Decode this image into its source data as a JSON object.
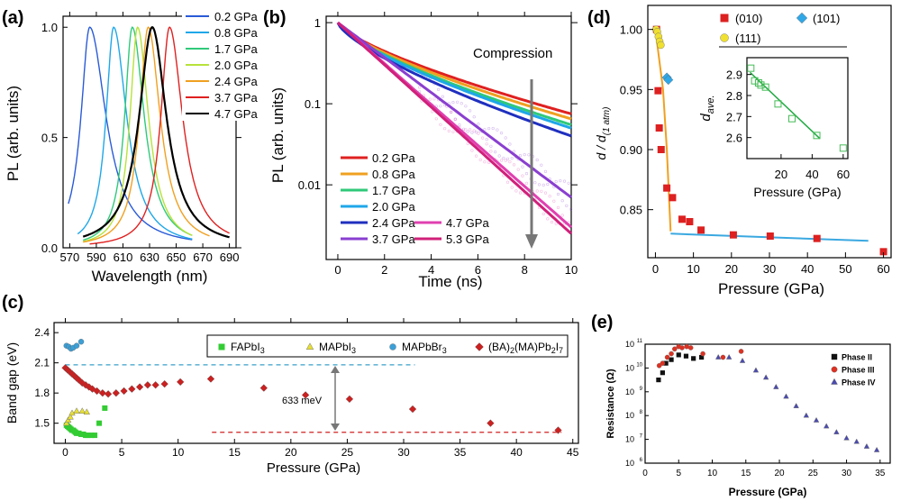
{
  "panels": {
    "a": {
      "label": "(a)"
    },
    "b": {
      "label": "(b)",
      "annotation": "Compression"
    },
    "c": {
      "label": "(c)",
      "annotation": "633 meV"
    },
    "d": {
      "label": "(d)",
      "inset_ylabel_main": "d",
      "inset_ylabel_sub": "ave.",
      "ylabel_main": "d / d",
      "ylabel_sub": "(1 atm)"
    },
    "e": {
      "label": "(e)"
    }
  },
  "chart_data": [
    {
      "id": "a",
      "type": "line",
      "title": "",
      "xlabel": "Wavelength (nm)",
      "ylabel": "PL (arb. units)",
      "xlim": [
        565,
        695
      ],
      "ylim": [
        0,
        1.05
      ],
      "xticks": [
        "570",
        "590",
        "610",
        "630",
        "650",
        "670",
        "690"
      ],
      "yticks": [
        "0.0",
        "0.5",
        "1.0"
      ],
      "series": [
        {
          "name": "0.2 GPa",
          "color": "#2a5bd7",
          "peak": 585,
          "left": 8,
          "right": 15,
          "start": 569,
          "end": 662
        },
        {
          "name": "0.8 GPa",
          "color": "#1ea7e8",
          "peak": 603,
          "left": 7,
          "right": 12,
          "start": 576,
          "end": 662
        },
        {
          "name": "1.7 GPa",
          "color": "#2fc97a",
          "peak": 617,
          "left": 7,
          "right": 11,
          "start": 580,
          "end": 662
        },
        {
          "name": "2.0 GPa",
          "color": "#b7e23a",
          "peak": 621,
          "left": 7,
          "right": 10,
          "start": 580,
          "end": 662
        },
        {
          "name": "2.4 GPa",
          "color": "#f0a020",
          "peak": 629,
          "left": 8,
          "right": 11,
          "start": 580,
          "end": 675
        },
        {
          "name": "3.7 GPa",
          "color": "#e02020",
          "peak": 645,
          "left": 8,
          "right": 12,
          "start": 585,
          "end": 690
        },
        {
          "name": "4.7 GPa",
          "color": "#000000",
          "peak": 632,
          "left": 12,
          "right": 13,
          "start": 580,
          "end": 690
        }
      ]
    },
    {
      "id": "b",
      "type": "line",
      "title": "",
      "xlabel": "Time (ns)",
      "ylabel": "PL (arb. units)",
      "xlim": [
        -0.5,
        10
      ],
      "ylim_log": [
        0.0012,
        1.2
      ],
      "xticks": [
        "0",
        "2",
        "4",
        "6",
        "8",
        "10"
      ],
      "yticks": [
        "0.01",
        "0.1",
        "1"
      ],
      "series": [
        {
          "name": "0.2 GPa",
          "color": "#e02020",
          "end_value": 0.075
        },
        {
          "name": "0.8 GPa",
          "color": "#f0a020",
          "end_value": 0.065
        },
        {
          "name": "1.7 GPa",
          "color": "#2fc97a",
          "end_value": 0.055
        },
        {
          "name": "2.0 GPa",
          "color": "#1ea7e8",
          "end_value": 0.05
        },
        {
          "name": "2.4 GPa",
          "color": "#1f2fbf",
          "end_value": 0.04
        },
        {
          "name": "3.7 GPa",
          "color": "#8a3fd0",
          "end_value": 0.007
        },
        {
          "name": "4.7 GPa",
          "color": "#e040b0",
          "end_value": 0.003
        },
        {
          "name": "5.3 GPa",
          "color": "#d0207a",
          "end_value": 0.0025
        }
      ]
    },
    {
      "id": "c",
      "type": "scatter",
      "title": "",
      "xlabel": "Pressure (GPa)",
      "ylabel": "Band gap (eV)",
      "xlim": [
        -1,
        45.5
      ],
      "ylim": [
        1.3,
        2.5
      ],
      "xticks": [
        "0",
        "5",
        "10",
        "15",
        "20",
        "25",
        "30",
        "35",
        "40",
        "45"
      ],
      "yticks": [
        "1.5",
        "1.8",
        "2.1",
        "2.4"
      ],
      "reference_lines": [
        {
          "y": 2.08,
          "color": "#3aa0c8"
        },
        {
          "y": 1.41,
          "color": "#d02020"
        }
      ],
      "series": [
        {
          "name": "FAPbI3",
          "display": "FAPbI",
          "sub": "3",
          "color": "#33cc33",
          "marker": "square",
          "points": [
            [
              0.1,
              1.48
            ],
            [
              0.2,
              1.47
            ],
            [
              0.3,
              1.46
            ],
            [
              0.4,
              1.45
            ],
            [
              0.5,
              1.44
            ],
            [
              0.6,
              1.43
            ],
            [
              0.7,
              1.43
            ],
            [
              0.8,
              1.42
            ],
            [
              0.9,
              1.41
            ],
            [
              1.0,
              1.4
            ],
            [
              1.2,
              1.4
            ],
            [
              1.4,
              1.39
            ],
            [
              1.6,
              1.39
            ],
            [
              1.8,
              1.38
            ],
            [
              2.0,
              1.38
            ],
            [
              2.3,
              1.38
            ],
            [
              2.6,
              1.38
            ],
            [
              3.0,
              1.5
            ],
            [
              3.5,
              1.65
            ]
          ]
        },
        {
          "name": "MAPbI3",
          "display": "MAPbI",
          "sub": "3",
          "color": "#e8e030",
          "marker": "triangle",
          "points": [
            [
              0.1,
              1.5
            ],
            [
              0.25,
              1.53
            ],
            [
              0.45,
              1.56
            ],
            [
              0.6,
              1.6
            ],
            [
              1.0,
              1.62
            ],
            [
              1.5,
              1.62
            ],
            [
              1.9,
              1.61
            ]
          ]
        },
        {
          "name": "MAPbBr3",
          "display": "MAPbBr",
          "sub": "3",
          "color": "#3aa0d8",
          "marker": "circle",
          "points": [
            [
              0.1,
              2.27
            ],
            [
              0.3,
              2.26
            ],
            [
              0.5,
              2.24
            ],
            [
              0.7,
              2.25
            ],
            [
              1.0,
              2.27
            ],
            [
              1.4,
              2.31
            ]
          ]
        },
        {
          "name": "(BA)2(MA)Pb2I7",
          "display": "(BA)",
          "color": "#cc2020",
          "marker": "diamond",
          "points": [
            [
              0.0,
              2.05
            ],
            [
              0.2,
              2.03
            ],
            [
              0.4,
              2.01
            ],
            [
              0.6,
              1.99
            ],
            [
              0.8,
              1.97
            ],
            [
              1.0,
              1.95
            ],
            [
              1.2,
              1.93
            ],
            [
              1.5,
              1.9
            ],
            [
              1.8,
              1.88
            ],
            [
              2.1,
              1.86
            ],
            [
              2.4,
              1.84
            ],
            [
              2.8,
              1.82
            ],
            [
              3.3,
              1.8
            ],
            [
              3.8,
              1.79
            ],
            [
              4.5,
              1.8
            ],
            [
              5.2,
              1.82
            ],
            [
              5.9,
              1.84
            ],
            [
              6.6,
              1.86
            ],
            [
              7.3,
              1.88
            ],
            [
              8.0,
              1.88
            ],
            [
              8.8,
              1.89
            ],
            [
              10.2,
              1.91
            ],
            [
              12.9,
              1.94
            ],
            [
              17.6,
              1.85
            ],
            [
              21.3,
              1.78
            ],
            [
              25.2,
              1.74
            ],
            [
              30.8,
              1.64
            ],
            [
              37.7,
              1.5
            ],
            [
              43.7,
              1.43
            ]
          ]
        }
      ]
    },
    {
      "id": "d",
      "type": "scatter",
      "title": "",
      "xlabel": "Pressure (GPa)",
      "ylabel": "d / d(1 atm)",
      "xlim": [
        -2,
        62
      ],
      "ylim": [
        0.81,
        1.02
      ],
      "xticks": [
        "0",
        "10",
        "20",
        "30",
        "40",
        "50",
        "60"
      ],
      "yticks": [
        "0.85",
        "0.90",
        "0.95",
        "1.00"
      ],
      "series": [
        {
          "name": "(010)",
          "color": "#dd2020",
          "marker": "square",
          "points": [
            [
              0.3,
              1.0
            ],
            [
              0.7,
              0.949
            ],
            [
              1.0,
              0.918
            ],
            [
              1.5,
              0.9
            ],
            [
              3.0,
              0.868
            ],
            [
              4.5,
              0.86
            ],
            [
              7.0,
              0.842
            ],
            [
              9.0,
              0.84
            ],
            [
              12.0,
              0.833
            ],
            [
              20.5,
              0.829
            ],
            [
              30.2,
              0.828
            ],
            [
              42.5,
              0.826
            ],
            [
              60.0,
              0.815
            ]
          ]
        },
        {
          "name": "(111)",
          "color": "#f0e030",
          "marker": "circle",
          "points": [
            [
              0.2,
              1.0
            ],
            [
              0.5,
              0.998
            ],
            [
              0.8,
              0.994
            ],
            [
              1.1,
              0.99
            ],
            [
              1.4,
              0.987
            ]
          ]
        },
        {
          "name": "(101)",
          "color": "#30a8e8",
          "marker": "diamond",
          "points": [
            [
              3.0,
              0.96
            ],
            [
              3.4,
              0.958
            ]
          ]
        }
      ],
      "fit_lines": [
        {
          "name": "low-pressure fit",
          "color": "#f0a020",
          "points": [
            [
              0,
              1.0
            ],
            [
              2,
              0.95
            ],
            [
              3,
              0.9
            ],
            [
              4,
              0.832
            ]
          ]
        },
        {
          "name": "high-pressure fit",
          "color": "#3aa8e0",
          "points": [
            [
              4,
              0.83
            ],
            [
              56,
              0.824
            ]
          ]
        }
      ],
      "inset": {
        "xlabel": "Pressure (GPa)",
        "ylabel": "d ave.",
        "xlim": [
          -2,
          63
        ],
        "ylim": [
          2.5,
          2.98
        ],
        "xticks": [
          "20",
          "40",
          "60"
        ],
        "yticks": [
          "2.6",
          "2.7",
          "2.8",
          "2.9"
        ],
        "color": "#22aa44",
        "points": [
          [
            0.5,
            2.93
          ],
          [
            3,
            2.87
          ],
          [
            5.5,
            2.86
          ],
          [
            7,
            2.85
          ],
          [
            10,
            2.84
          ],
          [
            18,
            2.76
          ],
          [
            27,
            2.69
          ],
          [
            43,
            2.61
          ],
          [
            60,
            2.55
          ]
        ],
        "fit": [
          [
            0,
            2.91
          ],
          [
            45,
            2.595
          ]
        ]
      }
    },
    {
      "id": "e",
      "type": "scatter",
      "title": "",
      "xlabel": "Pressure (GPa)",
      "ylabel": "Resistance (Ω)",
      "xlim": [
        0,
        36.5
      ],
      "ylim_log_exp": [
        6,
        11
      ],
      "xticks": [
        "0",
        "5",
        "10",
        "15",
        "20",
        "25",
        "30",
        "35"
      ],
      "yticks": [
        "10",
        "10",
        "10",
        "10",
        "10",
        "10"
      ],
      "ytick_exponents": [
        "6",
        "7",
        "8",
        "9",
        "10",
        "11"
      ],
      "series": [
        {
          "name": "Phase II",
          "color": "#111111",
          "marker": "square",
          "points": [
            [
              2.0,
              9.5
            ],
            [
              2.6,
              9.8
            ],
            [
              3.1,
              10.2
            ],
            [
              3.9,
              10.35
            ],
            [
              5.0,
              10.55
            ],
            [
              6.1,
              10.5
            ],
            [
              7.2,
              10.4
            ],
            [
              8.4,
              10.45
            ]
          ]
        },
        {
          "name": "Phase III",
          "color": "#e03020",
          "marker": "circle",
          "points": [
            [
              2.1,
              10.1
            ],
            [
              2.6,
              10.2
            ],
            [
              3.3,
              10.45
            ],
            [
              3.9,
              10.6
            ],
            [
              4.4,
              10.8
            ],
            [
              5.0,
              10.9
            ],
            [
              5.5,
              10.85
            ],
            [
              6.2,
              10.9
            ],
            [
              6.8,
              10.85
            ],
            [
              8.6,
              10.6
            ],
            [
              11.6,
              10.45
            ],
            [
              14.3,
              10.7
            ]
          ]
        },
        {
          "name": "Phase IV",
          "color": "#4a4ab0",
          "marker": "triangle",
          "points": [
            [
              10.9,
              10.45
            ],
            [
              12.5,
              10.45
            ],
            [
              14.5,
              10.3
            ],
            [
              16.5,
              9.9
            ],
            [
              18.0,
              9.6
            ],
            [
              19.5,
              9.2
            ],
            [
              21.0,
              8.8
            ],
            [
              22.5,
              8.4
            ],
            [
              24.0,
              8.0
            ],
            [
              25.5,
              7.8
            ],
            [
              27.0,
              7.55
            ],
            [
              28.5,
              7.3
            ],
            [
              30.0,
              7.05
            ],
            [
              31.5,
              6.9
            ],
            [
              33.0,
              6.7
            ],
            [
              34.5,
              6.55
            ]
          ]
        }
      ]
    }
  ]
}
